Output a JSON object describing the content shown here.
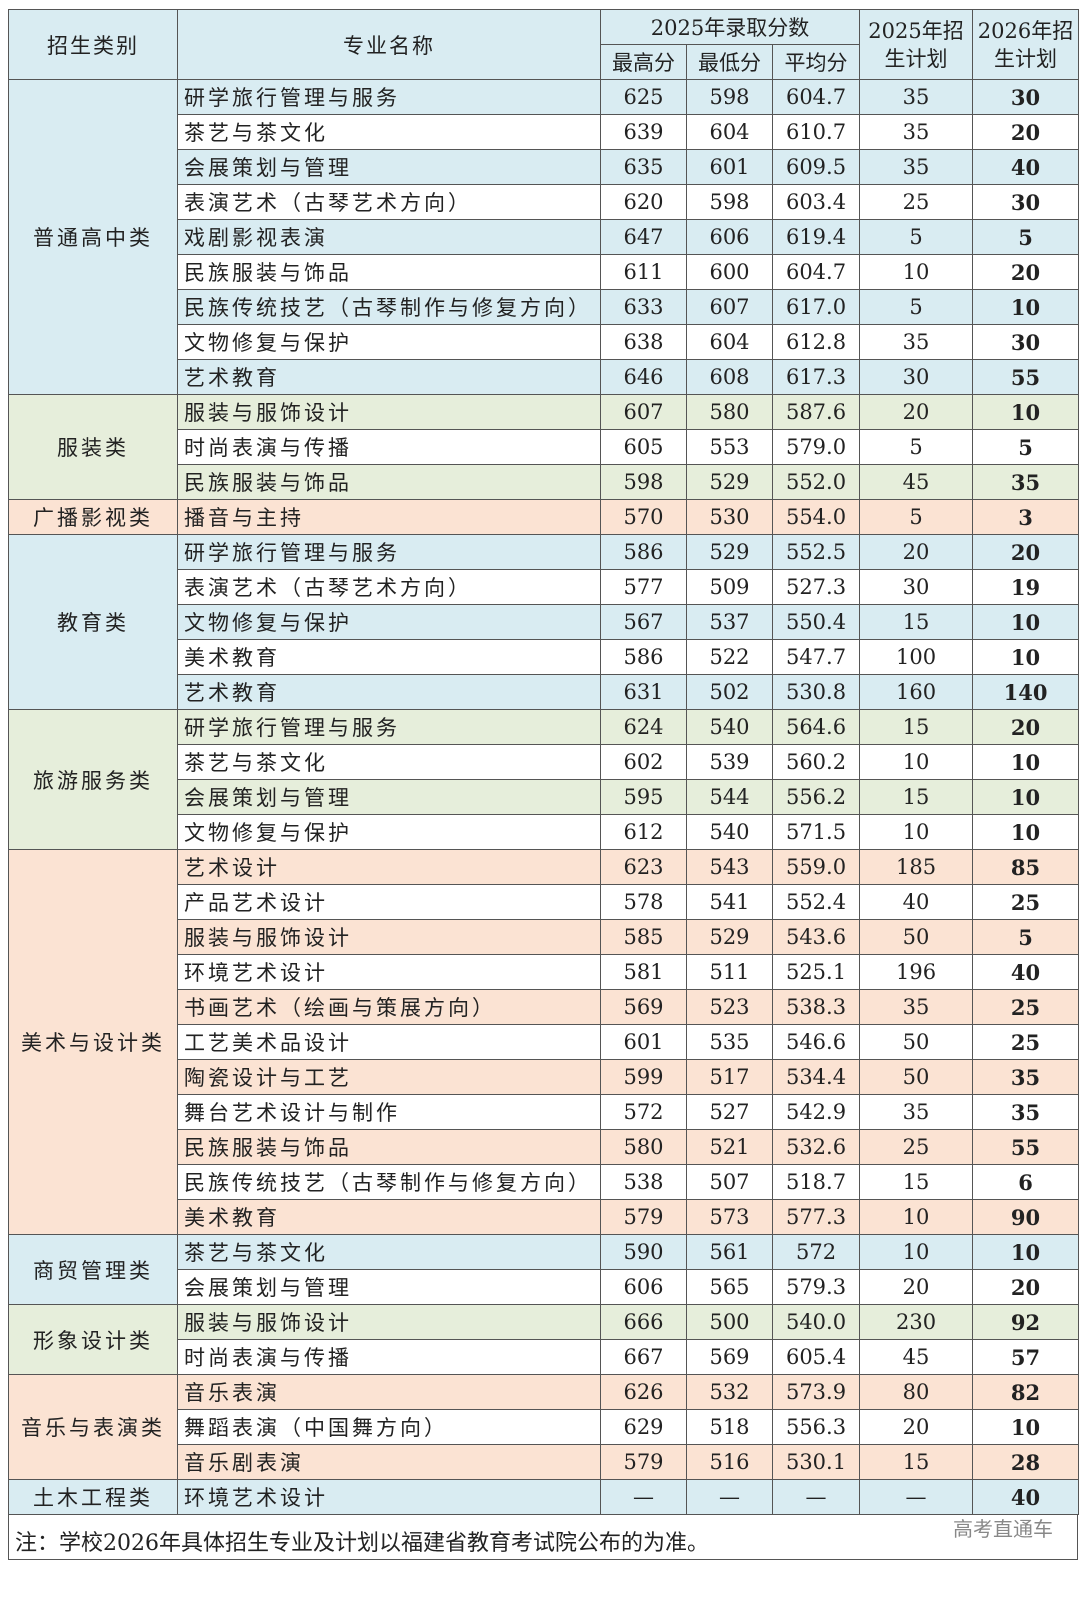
{
  "header": {
    "category": "招生类别",
    "major": "专业名称",
    "scores_2025": "2025年录取分数",
    "max": "最高分",
    "min": "最低分",
    "avg": "平均分",
    "plan_2025": "2025年招生计划",
    "plan_2026": "2026年招生计划"
  },
  "colors": {
    "blue": "#d9ecf2",
    "green": "#e6eedb",
    "orange": "#fbe3d3"
  },
  "groups": [
    {
      "category": "普通高中类",
      "color": "blue",
      "rows": [
        [
          "研学旅行管理与服务",
          "625",
          "598",
          "604.7",
          "35",
          "30"
        ],
        [
          "茶艺与茶文化",
          "639",
          "604",
          "610.7",
          "35",
          "20"
        ],
        [
          "会展策划与管理",
          "635",
          "601",
          "609.5",
          "35",
          "40"
        ],
        [
          "表演艺术（古琴艺术方向）",
          "620",
          "598",
          "603.4",
          "25",
          "30"
        ],
        [
          "戏剧影视表演",
          "647",
          "606",
          "619.4",
          "5",
          "5"
        ],
        [
          "民族服装与饰品",
          "611",
          "600",
          "604.7",
          "10",
          "20"
        ],
        [
          "民族传统技艺（古琴制作与修复方向）",
          "633",
          "607",
          "617.0",
          "5",
          "10"
        ],
        [
          "文物修复与保护",
          "638",
          "604",
          "612.8",
          "35",
          "30"
        ],
        [
          "艺术教育",
          "646",
          "608",
          "617.3",
          "30",
          "55"
        ]
      ]
    },
    {
      "category": "服装类",
      "color": "green",
      "rows": [
        [
          "服装与服饰设计",
          "607",
          "580",
          "587.6",
          "20",
          "10"
        ],
        [
          "时尚表演与传播",
          "605",
          "553",
          "579.0",
          "5",
          "5"
        ],
        [
          "民族服装与饰品",
          "598",
          "529",
          "552.0",
          "45",
          "35"
        ]
      ]
    },
    {
      "category": "广播影视类",
      "color": "orange",
      "rows": [
        [
          "播音与主持",
          "570",
          "530",
          "554.0",
          "5",
          "3"
        ]
      ]
    },
    {
      "category": "教育类",
      "color": "blue",
      "rows": [
        [
          "研学旅行管理与服务",
          "586",
          "529",
          "552.5",
          "20",
          "20"
        ],
        [
          "表演艺术（古琴艺术方向）",
          "577",
          "509",
          "527.3",
          "30",
          "19"
        ],
        [
          "文物修复与保护",
          "567",
          "537",
          "550.4",
          "15",
          "10"
        ],
        [
          "美术教育",
          "586",
          "522",
          "547.7",
          "100",
          "10"
        ],
        [
          "艺术教育",
          "631",
          "502",
          "530.8",
          "160",
          "140"
        ]
      ]
    },
    {
      "category": "旅游服务类",
      "color": "green",
      "rows": [
        [
          "研学旅行管理与服务",
          "624",
          "540",
          "564.6",
          "15",
          "20"
        ],
        [
          "茶艺与茶文化",
          "602",
          "539",
          "560.2",
          "10",
          "10"
        ],
        [
          "会展策划与管理",
          "595",
          "544",
          "556.2",
          "15",
          "10"
        ],
        [
          "文物修复与保护",
          "612",
          "540",
          "571.5",
          "10",
          "10"
        ]
      ]
    },
    {
      "category": "美术与设计类",
      "color": "orange",
      "rows": [
        [
          "艺术设计",
          "623",
          "543",
          "559.0",
          "185",
          "85"
        ],
        [
          "产品艺术设计",
          "578",
          "541",
          "552.4",
          "40",
          "25"
        ],
        [
          "服装与服饰设计",
          "585",
          "529",
          "543.6",
          "50",
          "5"
        ],
        [
          "环境艺术设计",
          "581",
          "511",
          "525.1",
          "196",
          "40"
        ],
        [
          "书画艺术（绘画与策展方向）",
          "569",
          "523",
          "538.3",
          "35",
          "25"
        ],
        [
          "工艺美术品设计",
          "601",
          "535",
          "546.6",
          "50",
          "25"
        ],
        [
          "陶瓷设计与工艺",
          "599",
          "517",
          "534.4",
          "50",
          "35"
        ],
        [
          "舞台艺术设计与制作",
          "572",
          "527",
          "542.9",
          "35",
          "35"
        ],
        [
          "民族服装与饰品",
          "580",
          "521",
          "532.6",
          "25",
          "55"
        ],
        [
          "民族传统技艺（古琴制作与修复方向）",
          "538",
          "507",
          "518.7",
          "15",
          "6"
        ],
        [
          "美术教育",
          "579",
          "573",
          "577.3",
          "10",
          "90"
        ]
      ]
    },
    {
      "category": "商贸管理类",
      "color": "blue",
      "rows": [
        [
          "茶艺与茶文化",
          "590",
          "561",
          "572",
          "10",
          "10"
        ],
        [
          "会展策划与管理",
          "606",
          "565",
          "579.3",
          "20",
          "20"
        ]
      ]
    },
    {
      "category": "形象设计类",
      "color": "green",
      "rows": [
        [
          "服装与服饰设计",
          "666",
          "500",
          "540.0",
          "230",
          "92"
        ],
        [
          "时尚表演与传播",
          "667",
          "569",
          "605.4",
          "45",
          "57"
        ]
      ]
    },
    {
      "category": "音乐与表演类",
      "color": "orange",
      "rows": [
        [
          "音乐表演",
          "626",
          "532",
          "573.9",
          "80",
          "82"
        ],
        [
          "舞蹈表演（中国舞方向）",
          "629",
          "518",
          "556.3",
          "20",
          "10"
        ],
        [
          "音乐剧表演",
          "579",
          "516",
          "530.1",
          "15",
          "28"
        ]
      ]
    },
    {
      "category": "土木工程类",
      "color": "blue",
      "rows": [
        [
          "环境艺术设计",
          "—",
          "—",
          "—",
          "—",
          "40"
        ]
      ]
    }
  ],
  "footer": {
    "note": "注：学校2026年具体招生专业及计划以福建省教育考试院公布的为准。",
    "watermark": "高考直通车"
  }
}
